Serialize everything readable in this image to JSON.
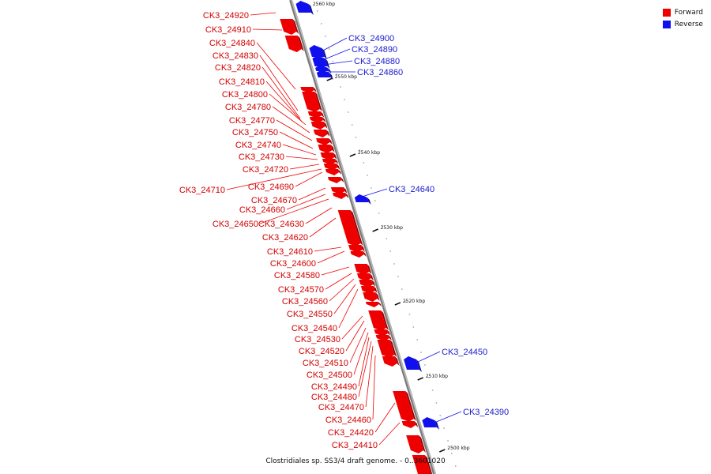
{
  "legend": [
    {
      "label": "Forward",
      "color": "#ee0000"
    },
    {
      "label": "Reverse",
      "color": "#1010ee"
    }
  ],
  "caption": "Clostridiales sp. SS3/4 draft genome. - 0..3601020",
  "ticks": [
    "2560 kbp",
    "2550 kbp",
    "2540 kbp",
    "2530 kbp",
    "2520 kbp",
    "2510 kbp",
    "2500 kbp"
  ],
  "forward_genes": [
    "CK3_24920",
    "CK3_24910",
    "CK3_24840",
    "CK3_24830",
    "CK3_24820",
    "CK3_24810",
    "CK3_24800",
    "CK3_24780",
    "CK3_24770",
    "CK3_24750",
    "CK3_24740",
    "CK3_24730",
    "CK3_24720",
    "CK3_24710",
    "CK3_24690",
    "CK3_24670",
    "CK3_24660",
    "CK3_24650",
    "CK3_24630",
    "CK3_24620",
    "CK3_24610",
    "CK3_24600",
    "CK3_24580",
    "CK3_24570",
    "CK3_24560",
    "CK3_24550",
    "CK3_24540",
    "CK3_24530",
    "CK3_24520",
    "CK3_24510",
    "CK3_24500",
    "CK3_24490",
    "CK3_24480",
    "CK3_24470",
    "CK3_24460",
    "CK3_24420",
    "CK3_24410"
  ],
  "reverse_genes": [
    "CK3_24900",
    "CK3_24890",
    "CK3_24880",
    "CK3_24860",
    "CK3_24640",
    "CK3_24450",
    "CK3_24390"
  ]
}
